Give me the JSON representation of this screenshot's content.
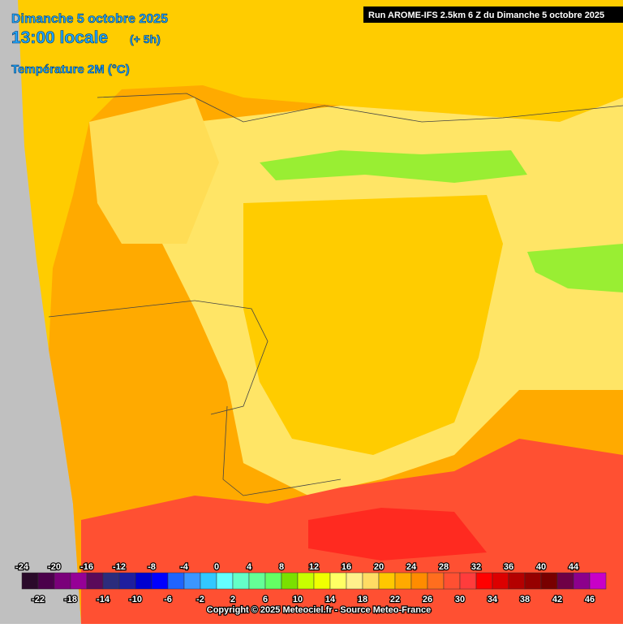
{
  "header": {
    "date": "Dimanche 5 octobre 2025",
    "time": "13:00 locale",
    "offset": "(+ 5h)",
    "parameter": "Température 2M (°C)",
    "run": "Run AROME-IFS 2.5km 6 Z du Dimanche 5 octobre 2025"
  },
  "legend": {
    "labels": [
      -24,
      -22,
      -20,
      -18,
      -16,
      -14,
      -12,
      -10,
      -8,
      -6,
      -4,
      -2,
      0,
      2,
      4,
      6,
      8,
      10,
      12,
      14,
      16,
      18,
      20,
      22,
      24,
      26,
      28,
      30,
      32,
      34,
      36,
      38,
      40,
      42,
      44,
      46
    ],
    "colors": [
      "#2a0a2a",
      "#4b004b",
      "#7a007a",
      "#960096",
      "#5a0a5a",
      "#2c2c7c",
      "#1e1e9e",
      "#0000d0",
      "#0000ff",
      "#1e64ff",
      "#3c96ff",
      "#32c8ff",
      "#64ffff",
      "#64ffc8",
      "#64ff96",
      "#64ff64",
      "#7ae000",
      "#c8ff00",
      "#f0ff00",
      "#ffff64",
      "#fff08c",
      "#ffdc64",
      "#ffc800",
      "#ffaa00",
      "#ff8c00",
      "#ff6e1e",
      "#ff5032",
      "#ff3c3c",
      "#ff0000",
      "#dc0000",
      "#b40000",
      "#960000",
      "#780000",
      "#6e0046",
      "#8c008c",
      "#c800c8"
    ]
  },
  "footer": {
    "copyright": "Copyright © 2025 Meteociel.fr - Source Meteo-France"
  }
}
